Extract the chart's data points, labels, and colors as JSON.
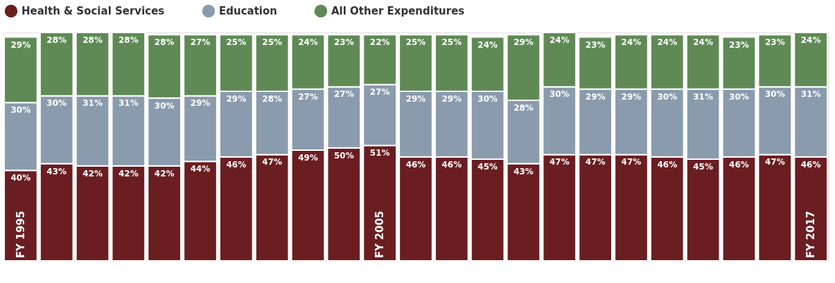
{
  "chart_data": {
    "type": "bar",
    "stacked": true,
    "legend": "top",
    "tick_labels": false,
    "ylim": [
      0,
      101
    ],
    "categories": [
      "FY 1995",
      null,
      null,
      null,
      null,
      null,
      null,
      null,
      null,
      null,
      "FY 2005",
      null,
      null,
      null,
      null,
      null,
      null,
      null,
      null,
      null,
      null,
      null,
      "FY 2017"
    ],
    "series": [
      {
        "name": "Health & Social Services",
        "color": "#6b1e22",
        "values": [
          40,
          43,
          42,
          42,
          42,
          44,
          46,
          47,
          49,
          50,
          51,
          46,
          46,
          45,
          43,
          47,
          47,
          47,
          46,
          45,
          46,
          47,
          46
        ],
        "value_labels": [
          "40%",
          "43%",
          "42%",
          "42%",
          "42%",
          "44%",
          "46%",
          "47%",
          "49%",
          "50%",
          "51%",
          "46%",
          "46%",
          "45%",
          "43%",
          "47%",
          "47%",
          "47%",
          "46%",
          "45%",
          "46%",
          "47%",
          "46%"
        ]
      },
      {
        "name": "Education",
        "color": "#8a9bad",
        "values": [
          30,
          30,
          31,
          31,
          30,
          29,
          29,
          28,
          27,
          27,
          27,
          29,
          29,
          30,
          28,
          30,
          29,
          29,
          30,
          31,
          30,
          30,
          31
        ],
        "value_labels": [
          "30%",
          "30%",
          "31%",
          "31%",
          "30%",
          "29%",
          "29%",
          "28%",
          "27%",
          "27%",
          "27%",
          "29%",
          "29%",
          "30%",
          "28%",
          "30%",
          "29%",
          "29%",
          "30%",
          "31%",
          "30%",
          "30%",
          "31%"
        ]
      },
      {
        "name": "All Other Expenditures",
        "color": "#5f8a55",
        "values": [
          29,
          28,
          28,
          28,
          28,
          27,
          25,
          25,
          24,
          23,
          22,
          25,
          25,
          24,
          29,
          24,
          23,
          24,
          24,
          24,
          23,
          23,
          24
        ],
        "value_labels": [
          "29%",
          "28%",
          "28%",
          "28%",
          "28%",
          "27%",
          "25%",
          "25%",
          "24%",
          "23%",
          "22%",
          "25%",
          "25%",
          "24%",
          "29%",
          "24%",
          "23%",
          "24%",
          "24%",
          "24%",
          "23%",
          "23%",
          "24%"
        ]
      }
    ]
  }
}
